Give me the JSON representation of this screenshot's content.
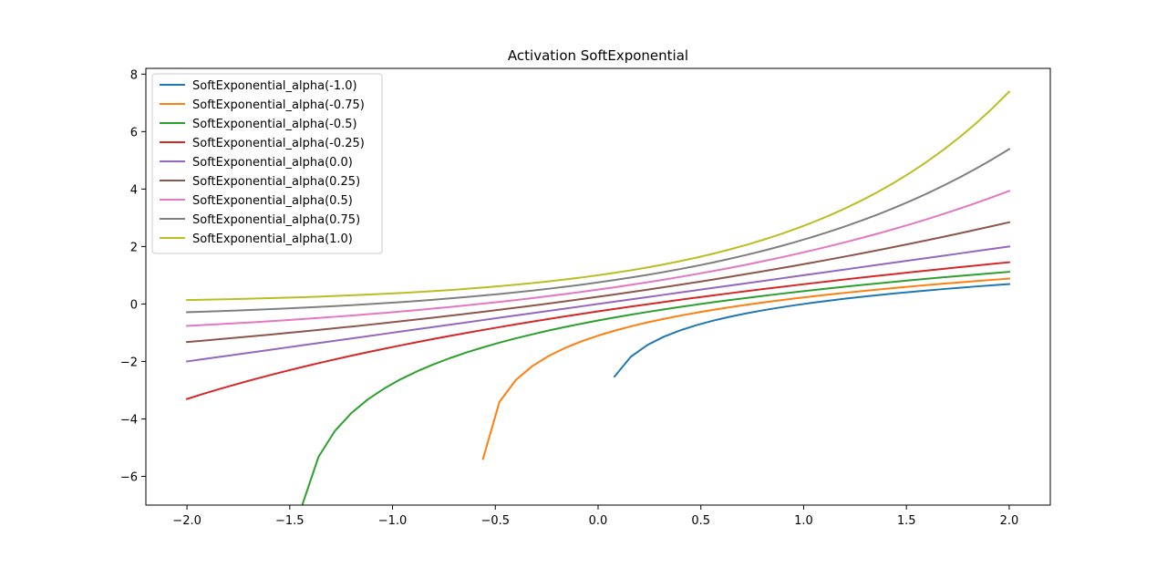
{
  "chart_data": {
    "type": "line",
    "title": "Activation SoftExponential",
    "xlabel": "",
    "ylabel": "",
    "xlim": [
      -2.2,
      2.2
    ],
    "ylim": [
      -7.0,
      8.2
    ],
    "x_ticks": [
      -2.0,
      -1.5,
      -1.0,
      -0.5,
      0.0,
      0.5,
      1.0,
      1.5,
      2.0
    ],
    "x_tick_labels": [
      "−2.0",
      "−1.5",
      "−1.0",
      "−0.5",
      "0.0",
      "0.5",
      "1.0",
      "1.5",
      "2.0"
    ],
    "y_ticks": [
      -6,
      -4,
      -2,
      0,
      2,
      4,
      6,
      8
    ],
    "y_tick_labels": [
      "−6",
      "−4",
      "−2",
      "0",
      "2",
      "4",
      "6",
      "8"
    ],
    "grid": false,
    "legend_position": "top-left",
    "x_range": [
      -2.0,
      2.0
    ],
    "num_points": 51,
    "series": [
      {
        "name": "SoftExponential_alpha(-1.0)",
        "alpha": -1.0,
        "color": "#1f77b4"
      },
      {
        "name": "SoftExponential_alpha(-0.75)",
        "alpha": -0.75,
        "color": "#ff7f0e"
      },
      {
        "name": "SoftExponential_alpha(-0.5)",
        "alpha": -0.5,
        "color": "#2ca02c"
      },
      {
        "name": "SoftExponential_alpha(-0.25)",
        "alpha": -0.25,
        "color": "#d62728"
      },
      {
        "name": "SoftExponential_alpha(0.0)",
        "alpha": 0.0,
        "color": "#9467bd"
      },
      {
        "name": "SoftExponential_alpha(0.25)",
        "alpha": 0.25,
        "color": "#8c564b"
      },
      {
        "name": "SoftExponential_alpha(0.5)",
        "alpha": 0.5,
        "color": "#e377c2"
      },
      {
        "name": "SoftExponential_alpha(0.75)",
        "alpha": 0.75,
        "color": "#7f7f7f"
      },
      {
        "name": "SoftExponential_alpha(1.0)",
        "alpha": 1.0,
        "color": "#bcbd22"
      }
    ]
  }
}
